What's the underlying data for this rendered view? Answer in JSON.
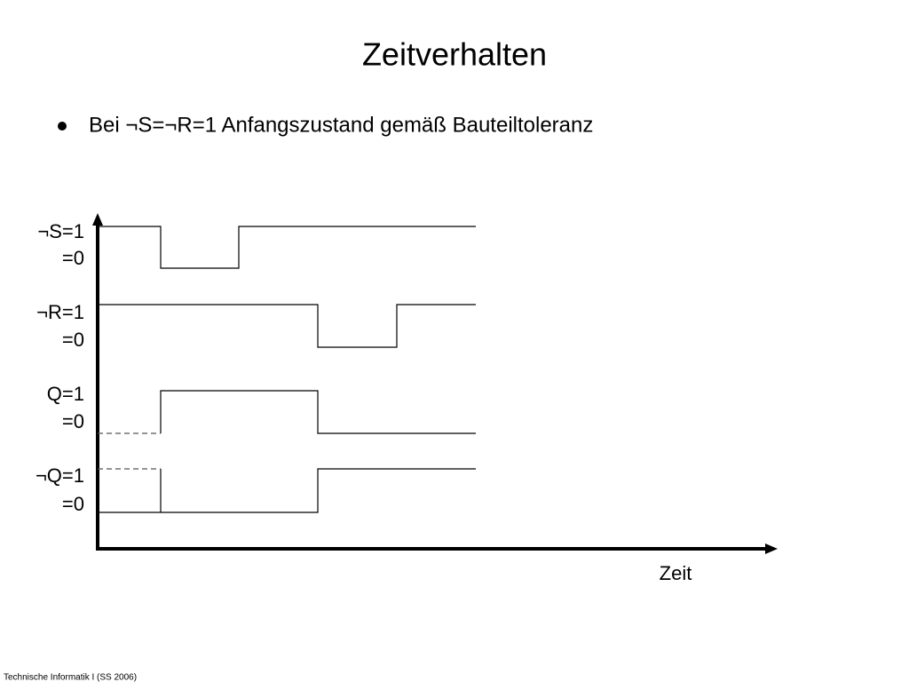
{
  "title": "Zeitverhalten",
  "bullets": [
    "Bei ¬S=¬R=1 Anfangszustand gemäß Bauteiltoleranz"
  ],
  "signals": [
    {
      "high": "¬S=1",
      "low": "=0"
    },
    {
      "high": "¬R=1",
      "low": "=0"
    },
    {
      "high": "Q=1",
      "low": "=0"
    },
    {
      "high": "¬Q=1",
      "low": "=0"
    }
  ],
  "x_axis_label": "Zeit",
  "footer": "Technische Informatik I (SS 2006)"
}
